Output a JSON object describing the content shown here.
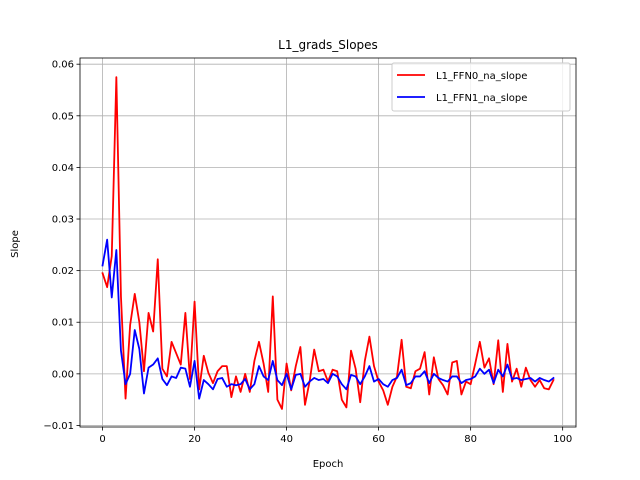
{
  "chart_data": {
    "type": "line",
    "title": "L1_grads_Slopes",
    "xlabel": "Epoch",
    "ylabel": "Slope",
    "xlim": [
      -4.9,
      102.9
    ],
    "ylim": [
      -0.0103,
      0.0612
    ],
    "xticks": [
      0,
      20,
      40,
      60,
      80,
      100
    ],
    "yticks": [
      -0.01,
      0.0,
      0.01,
      0.02,
      0.03,
      0.04,
      0.05,
      0.06
    ],
    "ytick_labels": [
      "−0.01",
      "0.00",
      "0.01",
      "0.02",
      "0.03",
      "0.04",
      "0.05",
      "0.06"
    ],
    "grid": true,
    "legend_position": "top-right",
    "series": [
      {
        "name": "L1_FFN0_na_slope",
        "color": "#ff0000",
        "x": [
          0,
          1,
          2,
          3,
          4,
          5,
          6,
          7,
          8,
          9,
          10,
          11,
          12,
          13,
          14,
          15,
          16,
          17,
          18,
          19,
          20,
          21,
          22,
          23,
          24,
          25,
          26,
          27,
          28,
          29,
          30,
          31,
          32,
          33,
          34,
          35,
          36,
          37,
          38,
          39,
          40,
          41,
          42,
          43,
          44,
          45,
          46,
          47,
          48,
          49,
          50,
          51,
          52,
          53,
          54,
          55,
          56,
          57,
          58,
          59,
          60,
          61,
          62,
          63,
          64,
          65,
          66,
          67,
          68,
          69,
          70,
          71,
          72,
          73,
          74,
          75,
          76,
          77,
          78,
          79,
          80,
          81,
          82,
          83,
          84,
          85,
          86,
          87,
          88,
          89,
          90,
          91,
          92,
          93,
          94,
          95,
          96,
          97,
          98
        ],
        "values": [
          0.0195,
          0.0168,
          0.0228,
          0.0575,
          0.015,
          -0.0048,
          0.0095,
          0.0155,
          0.01,
          0.0005,
          0.0118,
          0.0082,
          0.0222,
          0.001,
          -0.0005,
          0.0062,
          0.004,
          0.0018,
          0.0118,
          -0.001,
          0.014,
          -0.003,
          0.0035,
          0.0002,
          -0.0018,
          0.0005,
          0.0015,
          0.0015,
          -0.0045,
          -0.0005,
          -0.0035,
          0.0,
          -0.0035,
          0.0025,
          0.0062,
          0.002,
          -0.0035,
          0.015,
          -0.005,
          -0.0068,
          0.002,
          -0.0032,
          0.0015,
          0.0052,
          -0.006,
          -0.0015,
          0.0047,
          0.0005,
          0.0008,
          -0.0015,
          0.0008,
          0.0005,
          -0.005,
          -0.0065,
          0.0045,
          0.001,
          -0.0055,
          0.0025,
          0.0072,
          0.0015,
          -0.0015,
          -0.0032,
          -0.006,
          -0.0025,
          -0.0005,
          0.0066,
          -0.0025,
          -0.0028,
          0.0005,
          0.001,
          0.0042,
          -0.004,
          0.0032,
          -0.001,
          -0.0022,
          -0.004,
          0.0022,
          0.0025,
          -0.004,
          -0.0015,
          -0.002,
          0.002,
          0.0062,
          0.0012,
          0.003,
          -0.002,
          0.0065,
          -0.0035,
          0.0058,
          -0.0015,
          0.001,
          -0.0025,
          0.0012,
          -0.0012,
          -0.0025,
          -0.0012,
          -0.0028,
          -0.003,
          -0.0012
        ]
      },
      {
        "name": "L1_FFN1_na_slope",
        "color": "#0000ff",
        "x": [
          0,
          1,
          2,
          3,
          4,
          5,
          6,
          7,
          8,
          9,
          10,
          11,
          12,
          13,
          14,
          15,
          16,
          17,
          18,
          19,
          20,
          21,
          22,
          23,
          24,
          25,
          26,
          27,
          28,
          29,
          30,
          31,
          32,
          33,
          34,
          35,
          36,
          37,
          38,
          39,
          40,
          41,
          42,
          43,
          44,
          45,
          46,
          47,
          48,
          49,
          50,
          51,
          52,
          53,
          54,
          55,
          56,
          57,
          58,
          59,
          60,
          61,
          62,
          63,
          64,
          65,
          66,
          67,
          68,
          69,
          70,
          71,
          72,
          73,
          74,
          75,
          76,
          77,
          78,
          79,
          80,
          81,
          82,
          83,
          84,
          85,
          86,
          87,
          88,
          89,
          90,
          91,
          92,
          93,
          94,
          95,
          96,
          97,
          98
        ],
        "values": [
          0.021,
          0.026,
          0.0148,
          0.024,
          0.0045,
          -0.002,
          0.0,
          0.0085,
          0.0048,
          -0.0038,
          0.0012,
          0.0018,
          0.003,
          -0.001,
          -0.0022,
          -0.0005,
          -0.0008,
          0.0012,
          0.001,
          -0.0025,
          0.0025,
          -0.0048,
          -0.0012,
          -0.002,
          -0.003,
          -0.001,
          -0.0008,
          -0.0025,
          -0.002,
          -0.0022,
          -0.002,
          -0.001,
          -0.003,
          -0.002,
          0.0015,
          -0.0005,
          -0.0012,
          0.0025,
          -0.0012,
          -0.0022,
          0.0,
          -0.003,
          -0.0002,
          0.0,
          -0.0025,
          -0.0015,
          -0.0008,
          -0.0012,
          -0.001,
          -0.0018,
          0.0,
          -0.0005,
          -0.002,
          -0.003,
          -0.0002,
          -0.0005,
          -0.002,
          -0.0005,
          0.0015,
          -0.0015,
          -0.001,
          -0.002,
          -0.0025,
          -0.0012,
          -0.0008,
          0.0008,
          -0.0022,
          -0.0018,
          -0.0005,
          -0.0005,
          0.0005,
          -0.0018,
          0.0,
          -0.0008,
          -0.0012,
          -0.0015,
          -0.0005,
          -0.0005,
          -0.0018,
          -0.0012,
          -0.001,
          -0.0005,
          0.001,
          0.0,
          0.0008,
          -0.0018,
          0.0008,
          -0.0005,
          0.0018,
          -0.001,
          -0.0008,
          -0.0012,
          -0.001,
          -0.0008,
          -0.0015,
          -0.0008,
          -0.0012,
          -0.0015,
          -0.0008
        ]
      }
    ]
  }
}
